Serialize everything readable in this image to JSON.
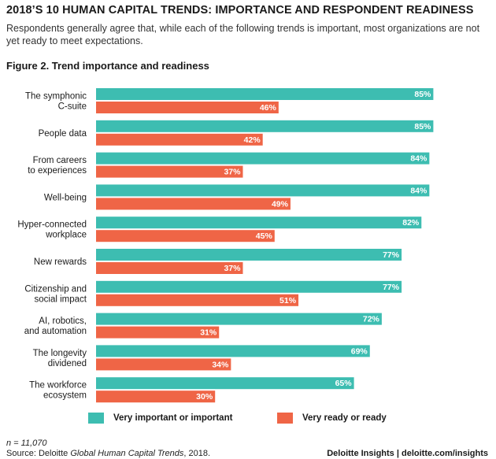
{
  "header": {
    "title": "2018’S 10 HUMAN CAPITAL TRENDS: IMPORTANCE AND RESPONDENT READINESS",
    "subtitle": "Respondents generally agree that, while each of the following trends is important, most organizations are not yet ready to meet expectations."
  },
  "figure": {
    "title": "Figure 2. Trend importance and readiness"
  },
  "chart_data": {
    "type": "bar",
    "orientation": "horizontal",
    "categories": [
      [
        "The symphonic",
        "C-suite"
      ],
      [
        "People data"
      ],
      [
        "From careers",
        "to experiences"
      ],
      [
        "Well-being"
      ],
      [
        "Hyper-connected",
        "workplace"
      ],
      [
        "New rewards"
      ],
      [
        "Citizenship and",
        "social impact"
      ],
      [
        "AI, robotics,",
        "and automation"
      ],
      [
        "The longevity",
        "dividened"
      ],
      [
        "The workforce",
        "ecosystem"
      ]
    ],
    "series": [
      {
        "name": "Very important or important",
        "color": "#3dbdb1",
        "values": [
          85,
          85,
          84,
          84,
          82,
          77,
          77,
          72,
          69,
          65
        ]
      },
      {
        "name": "Very ready or ready",
        "color": "#ef6546",
        "values": [
          46,
          42,
          37,
          49,
          45,
          37,
          51,
          31,
          34,
          30
        ]
      }
    ],
    "value_suffix": "%",
    "xlim": [
      0,
      100
    ],
    "legend_position": "bottom"
  },
  "footer": {
    "n_label": "n = 11,070",
    "source_prefix": "Source: Deloitte ",
    "source_italic": "Global Human Capital Trends",
    "source_suffix": ", 2018.",
    "brand": "Deloitte Insights | deloitte.com/insights"
  }
}
